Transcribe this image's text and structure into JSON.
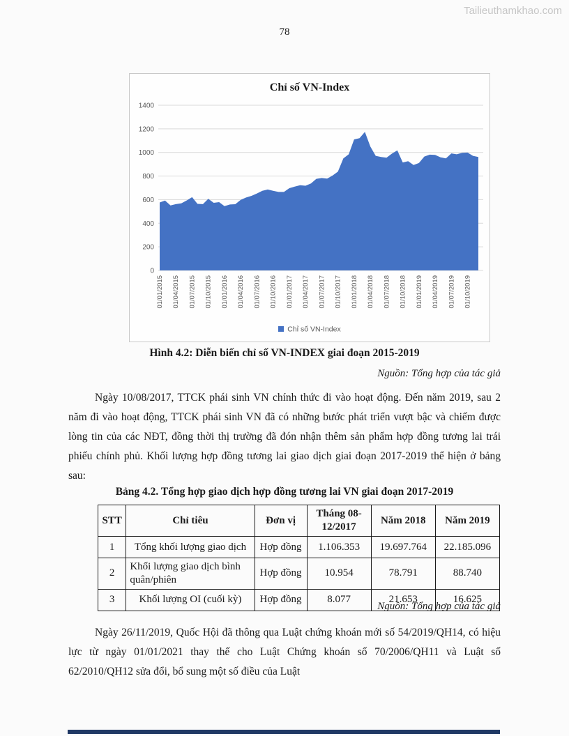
{
  "page": {
    "watermark": "Tailieuthamkhao.com",
    "page_number": "78"
  },
  "chart_data": {
    "type": "area",
    "title": "Chỉ số VN-Index",
    "legend_label": "Chỉ số VN-Index",
    "legend_position": "bottom",
    "series_color": "#4472C4",
    "grid": true,
    "ylim": [
      0,
      1400
    ],
    "yticks": [
      0,
      200,
      400,
      600,
      800,
      1000,
      1200,
      1400
    ],
    "x_tick_labels": [
      "01/01/2015",
      "01/04/2015",
      "01/07/2015",
      "01/10/2015",
      "01/01/2016",
      "01/04/2016",
      "01/07/2016",
      "01/10/2016",
      "01/01/2017",
      "01/04/2017",
      "01/07/2017",
      "01/10/2017",
      "01/01/2018",
      "01/04/2018",
      "01/07/2018",
      "01/10/2018",
      "01/01/2019",
      "01/04/2019",
      "01/07/2019",
      "01/10/2019"
    ],
    "values": [
      576,
      592,
      551,
      562,
      569,
      593,
      621,
      564,
      562,
      607,
      573,
      579,
      545,
      559,
      561,
      598,
      618,
      632,
      652,
      675,
      686,
      675,
      665,
      665,
      697,
      710,
      722,
      718,
      737,
      776,
      783,
      778,
      804,
      837,
      949,
      984,
      1110,
      1121,
      1174,
      1050,
      971,
      961,
      956,
      990,
      1017,
      915,
      926,
      893,
      910,
      965,
      981,
      979,
      959,
      950,
      992,
      984,
      997,
      999,
      971,
      961
    ]
  },
  "figure": {
    "caption": "Hình 4.2: Diễn biến chỉ số VN-INDEX giai đoạn 2015-2019",
    "source": "Nguồn: Tổng hợp của tác giả"
  },
  "paragraphs": [
    "Ngày 10/08/2017, TTCK phái sinh VN chính thức đi vào hoạt động. Đến năm 2019, sau 2 năm đi vào hoạt động, TTCK phái sinh VN đã có những bước phát triển vượt bậc và chiếm được lòng tin của các NĐT, đồng thời thị trường đã đón nhận thêm sản phẩm hợp đồng tương lai trái phiếu chính phủ. Khối lượng hợp đồng tương lai giao dịch giai đoạn 2017-2019 thể hiện ở bảng sau:",
    "Ngày 26/11/2019, Quốc Hội đã thông qua Luật chứng khoán mới số 54/2019/QH14, có hiệu lực từ ngày 01/01/2021 thay thế cho Luật Chứng khoán số 70/2006/QH11 và Luật số 62/2010/QH12 sửa đổi, bổ sung một số điều của Luật"
  ],
  "table": {
    "title": "Bảng 4.2. Tổng hợp giao dịch hợp đồng tương lai VN giai đoạn 2017-2019",
    "headers": [
      "STT",
      "Chỉ tiêu",
      "Đơn vị",
      "Tháng 08-12/2017",
      "Năm 2018",
      "Năm 2019"
    ],
    "col_widths": [
      "7%",
      "32%",
      "13%",
      "16%",
      "16%",
      "16%"
    ],
    "rows": [
      [
        "1",
        "Tổng khối lượng giao dịch",
        "Hợp đồng",
        "1.106.353",
        "19.697.764",
        "22.185.096"
      ],
      [
        "2",
        "Khối lượng giao dịch bình quân/phiên",
        "Hợp đồng",
        "10.954",
        "78.791",
        "88.740"
      ],
      [
        "3",
        "Khối lượng OI (cuối kỳ)",
        "Hợp đồng",
        "8.077",
        "21.653",
        "16.625"
      ]
    ],
    "source": "Nguồn: Tổng hợp của tác giả"
  }
}
